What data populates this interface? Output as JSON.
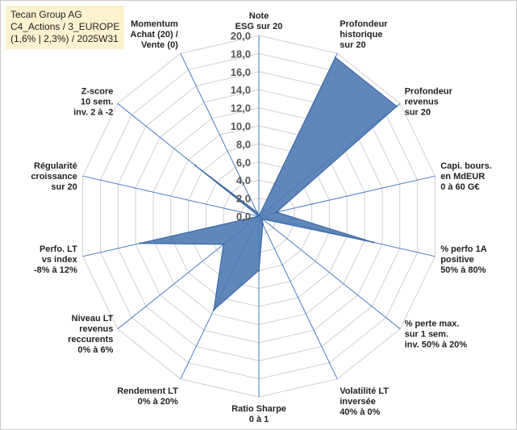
{
  "title_box": {
    "line1": "Tecan Group AG",
    "line2": "C4_Actions / 3_EUROPE",
    "line3": "(1,6% | 2,3%) / 2025W31"
  },
  "colors": {
    "fill": "#4f7ab3",
    "stroke": "#3d6aa6",
    "grid": "#d0d0d0",
    "spoke": "#4a7cc0",
    "title_bg": "#fdf2cf"
  },
  "chart_data": {
    "type": "radar",
    "rlim": [
      0,
      20
    ],
    "ticks": [
      "0,0",
      "2,0",
      "4,0",
      "6,0",
      "8,0",
      "10,0",
      "12,0",
      "14,0",
      "16,0",
      "18,0",
      "20,0"
    ],
    "categories": [
      [
        "Note",
        "ESG sur 20"
      ],
      [
        "Profondeur",
        "historique",
        "sur 20"
      ],
      [
        "Profondeur",
        "revenus",
        "sur 20"
      ],
      [
        "Capi. bours.",
        "en MdEUR",
        "0 à 60 G€"
      ],
      [
        "% perfo 1A",
        "positive",
        "50% à 80%"
      ],
      [
        "% perte max.",
        "sur 1 sem.",
        "inv. 50% à 20%"
      ],
      [
        "Volatilité LT",
        "inversée",
        "40% à 0%"
      ],
      [
        "Ratio Sharpe",
        "0 à 1"
      ],
      [
        "Rendement LT",
        "0% à 20%"
      ],
      [
        "Niveau LT",
        "revenus",
        "reccurents",
        "0% à 6%"
      ],
      [
        "Perfo. LT",
        "vs index",
        "-8% à 12%"
      ],
      [
        "Régularité",
        "croissance",
        "sur 20"
      ],
      [
        "Z-score",
        "10 sem.",
        "inv. 2 à -2"
      ],
      [
        "Momentum",
        "Achat (20) /",
        "Vente (0)"
      ]
    ],
    "series": [
      {
        "values": [
          0.0,
          19.5,
          19.5,
          2.0,
          13.0,
          0.5,
          1.0,
          6.0,
          11.5,
          5.0,
          13.5,
          0.0,
          9.0,
          0.5
        ]
      }
    ],
    "grid": true
  }
}
